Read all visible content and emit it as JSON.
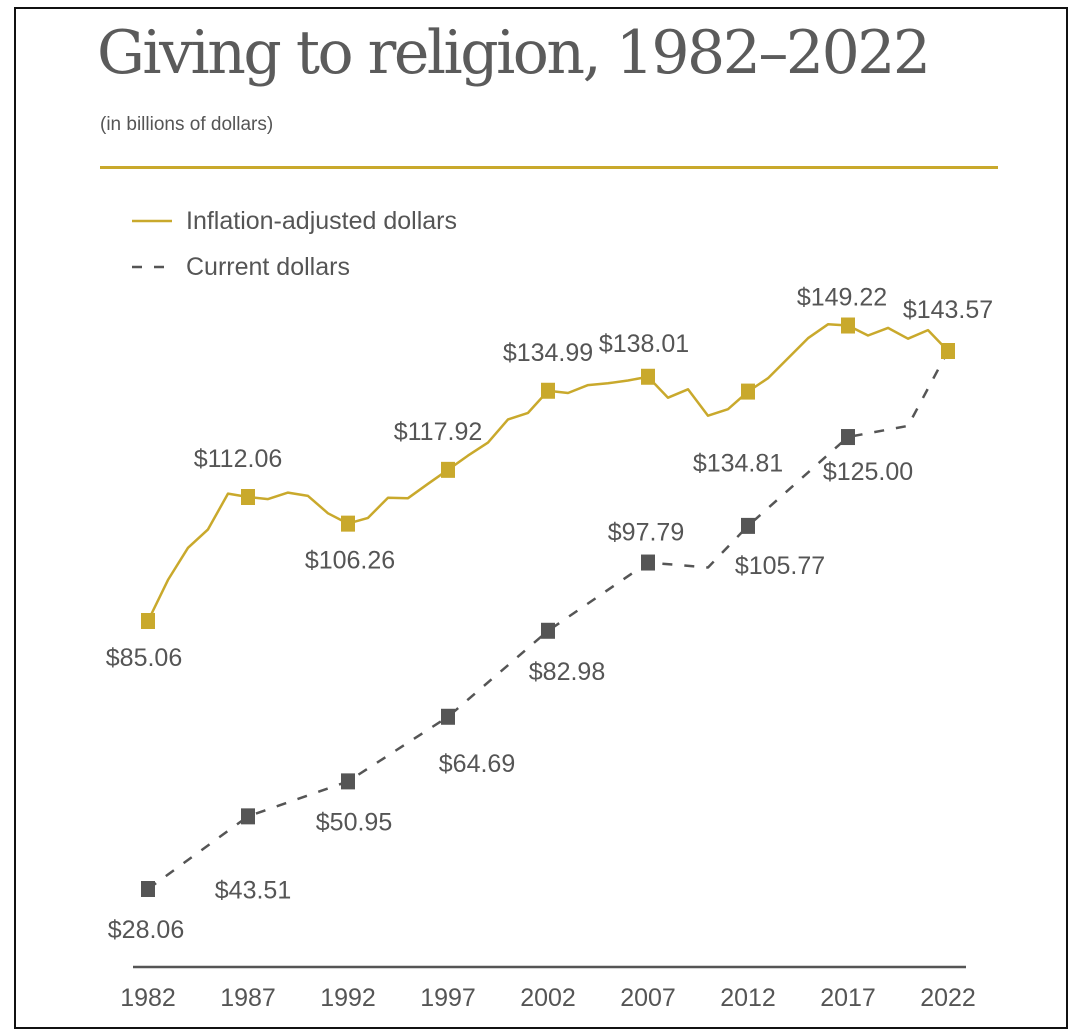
{
  "page": {
    "title": "Giving to religion, 1982–2022",
    "subtitle": "(in billions of dollars)",
    "accent_color": "#c9a92c",
    "secondary_color": "#555555",
    "text_color": "#555555"
  },
  "chart_data": {
    "type": "line",
    "title": "Giving to religion, 1982–2022",
    "subtitle": "(in billions of dollars)",
    "xlabel": "",
    "ylabel": "",
    "grid": false,
    "legend_position": "top-left",
    "x_ticks": [
      1982,
      1987,
      1992,
      1997,
      2002,
      2007,
      2012,
      2017,
      2022
    ],
    "ylim": [
      20,
      160
    ],
    "series": [
      {
        "name": "Inflation-adjusted dollars",
        "style": "solid",
        "color": "#c9a92c",
        "x": [
          1982,
          1983,
          1984,
          1985,
          1986,
          1987,
          1988,
          1989,
          1990,
          1991,
          1992,
          1993,
          1994,
          1995,
          1996,
          1997,
          1998,
          1999,
          2000,
          2001,
          2002,
          2003,
          2004,
          2005,
          2006,
          2007,
          2008,
          2009,
          2010,
          2011,
          2012,
          2013,
          2014,
          2015,
          2016,
          2017,
          2018,
          2019,
          2020,
          2021,
          2022
        ],
        "values": [
          85.06,
          94,
          101,
          105,
          112.8,
          112.06,
          111.6,
          113,
          112.3,
          108.5,
          106.26,
          107.5,
          111.9,
          111.8,
          114.9,
          117.92,
          121,
          123.8,
          128.8,
          130.2,
          134.99,
          134.5,
          136.2,
          136.6,
          137.2,
          138.01,
          133.5,
          135.3,
          129.6,
          131,
          134.81,
          137.7,
          142,
          146.4,
          149.5,
          149.22,
          147,
          148.7,
          146.3,
          148.2,
          143.57
        ],
        "markers": [
          {
            "x": 1982,
            "label": "$85.06"
          },
          {
            "x": 1987,
            "label": "$112.06"
          },
          {
            "x": 1992,
            "label": "$106.26"
          },
          {
            "x": 1997,
            "label": "$117.92"
          },
          {
            "x": 2002,
            "label": "$134.99"
          },
          {
            "x": 2007,
            "label": "$138.01"
          },
          {
            "x": 2012,
            "label": "$134.81"
          },
          {
            "x": 2017,
            "label": "$149.22"
          },
          {
            "x": 2022,
            "label": "$143.57"
          }
        ]
      },
      {
        "name": "Current dollars",
        "style": "dashed",
        "color": "#555555",
        "x": [
          1982,
          1987,
          1992,
          1997,
          2002,
          2007,
          2010,
          2012,
          2017,
          2020,
          2022
        ],
        "values": [
          28.06,
          43.51,
          50.95,
          64.69,
          82.98,
          97.79,
          96.7,
          105.77,
          125.0,
          127.4,
          143.57
        ],
        "markers": [
          {
            "x": 1982,
            "label": "$28.06"
          },
          {
            "x": 1987,
            "label": "$43.51"
          },
          {
            "x": 1992,
            "label": "$50.95"
          },
          {
            "x": 1997,
            "label": "$64.69"
          },
          {
            "x": 2002,
            "label": "$82.98"
          },
          {
            "x": 2007,
            "label": "$97.79"
          },
          {
            "x": 2012,
            "label": "$105.77"
          },
          {
            "x": 2017,
            "label": "$125.00"
          }
        ]
      }
    ]
  }
}
